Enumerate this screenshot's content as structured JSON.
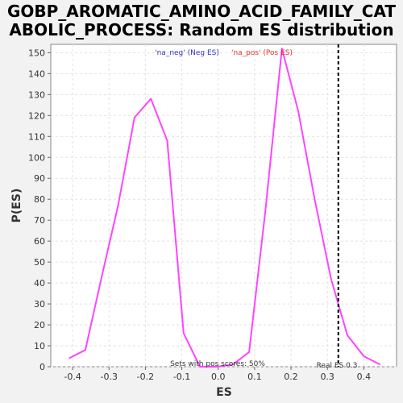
{
  "chart_data": {
    "type": "line",
    "title_line1": "GOBP_AROMATIC_AMINO_ACID_FAMILY_CAT",
    "title_line2": "ABOLIC_PROCESS: Random ES distribution",
    "xlabel": "ES",
    "ylabel": "P(ES)",
    "xlim": [
      -0.46,
      0.49
    ],
    "ylim": [
      0,
      154
    ],
    "grid": true,
    "x_ticks": [
      -0.4,
      -0.3,
      -0.2,
      -0.1,
      0.0,
      0.1,
      0.2,
      0.3,
      0.4
    ],
    "x_tick_labels": [
      "-0.4",
      "-0.3",
      "-0.2",
      "-0.1",
      "0.0",
      "0.1",
      "0.2",
      "0.3",
      "0.4"
    ],
    "y_ticks": [
      0,
      10,
      20,
      30,
      40,
      50,
      60,
      70,
      80,
      90,
      100,
      110,
      120,
      130,
      140,
      150
    ],
    "y_tick_labels": [
      "0",
      "10",
      "20",
      "30",
      "40",
      "50",
      "60",
      "70",
      "80",
      "90",
      "100",
      "110",
      "120",
      "130",
      "140",
      "150"
    ],
    "legend": {
      "placement": "top-center",
      "neg_label": "'na_neg' (Neg ES)",
      "pos_label": "'na_pos' (Pos ES)",
      "neg_color": "#3333cc",
      "pos_color": "#dd3333"
    },
    "series": [
      {
        "color": "#ff44ff",
        "x": [
          -0.41,
          -0.365,
          -0.32,
          -0.275,
          -0.23,
          -0.185,
          -0.14,
          -0.095,
          -0.05,
          -0.005,
          0.04,
          0.085,
          0.13,
          0.175,
          0.22,
          0.265,
          0.31,
          0.355,
          0.4,
          0.445
        ],
        "y": [
          4,
          8,
          43,
          77,
          119,
          128,
          108,
          16,
          0,
          0,
          1,
          7,
          75,
          152,
          122,
          80,
          42,
          15,
          5,
          1
        ]
      }
    ],
    "real_es": {
      "value": 0.33,
      "label": "Real ES 0.3"
    },
    "annotation": "Sets with pos scores: 50%"
  }
}
